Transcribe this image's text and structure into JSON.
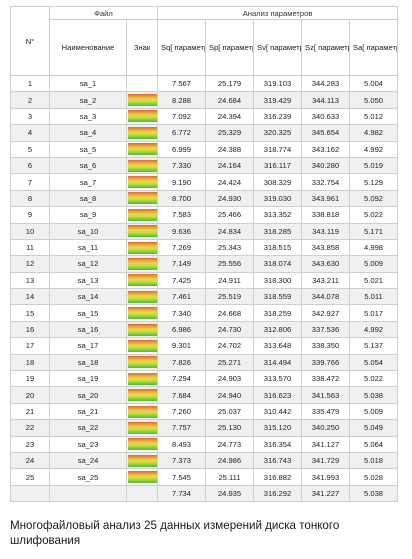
{
  "header": {
    "no": "N°",
    "file_group": "Файл",
    "analysis_group": "Анализ параметров",
    "name": "Наименование",
    "mark": "Знак",
    "columns": [
      "Sq[ параметр высоты] [I...",
      "Sp[ параметр высоты] [I...",
      "Sv[ параметр высоты] [IS...",
      "Sz[ параметр высоты] [IS...",
      "Sa[ параметр высоты] [I..."
    ]
  },
  "rows": [
    {
      "no": "1",
      "name": "sa_1",
      "mark": "",
      "values": [
        "7.567",
        "25.179",
        "319.103",
        "344.283",
        "5.004"
      ]
    },
    {
      "no": "2",
      "name": "sa_2",
      "mark": "gradient",
      "values": [
        "8.288",
        "24.684",
        "319.429",
        "344.113",
        "5.050"
      ]
    },
    {
      "no": "3",
      "name": "sa_3",
      "mark": "gradient",
      "values": [
        "7.092",
        "24.394",
        "316.239",
        "340.633",
        "5.012"
      ]
    },
    {
      "no": "4",
      "name": "sa_4",
      "mark": "gradient",
      "values": [
        "6.772",
        "25.329",
        "320.325",
        "345.654",
        "4.982"
      ]
    },
    {
      "no": "5",
      "name": "sa_5",
      "mark": "gradient",
      "values": [
        "6.999",
        "24.388",
        "318.774",
        "343.162",
        "4.992"
      ]
    },
    {
      "no": "6",
      "name": "sa_6",
      "mark": "gradient",
      "values": [
        "7.330",
        "24.164",
        "316.117",
        "340.280",
        "5.019"
      ]
    },
    {
      "no": "7",
      "name": "sa_7",
      "mark": "gradient",
      "values": [
        "9.190",
        "24.424",
        "308.329",
        "332.754",
        "5.129"
      ]
    },
    {
      "no": "8",
      "name": "sa_8",
      "mark": "gradient",
      "values": [
        "8.700",
        "24.930",
        "319.030",
        "343.961",
        "5.092"
      ]
    },
    {
      "no": "9",
      "name": "sa_9",
      "mark": "gradient",
      "values": [
        "7.583",
        "25.466",
        "313.352",
        "338.818",
        "5.022"
      ]
    },
    {
      "no": "10",
      "name": "sa_10",
      "mark": "gradient",
      "values": [
        "9.636",
        "24.834",
        "318.285",
        "343.119",
        "5.171"
      ]
    },
    {
      "no": "11",
      "name": "sa_11",
      "mark": "gradient",
      "values": [
        "7.269",
        "25.343",
        "318.515",
        "343.858",
        "4.998"
      ]
    },
    {
      "no": "12",
      "name": "sa_12",
      "mark": "gradient",
      "values": [
        "7.149",
        "25.556",
        "318.074",
        "343.630",
        "5.009"
      ]
    },
    {
      "no": "13",
      "name": "sa_13",
      "mark": "gradient",
      "values": [
        "7.425",
        "24.911",
        "318.300",
        "343.211",
        "5.021"
      ]
    },
    {
      "no": "14",
      "name": "sa_14",
      "mark": "gradient",
      "values": [
        "7.461",
        "25.519",
        "318.559",
        "344.078",
        "5.011"
      ]
    },
    {
      "no": "15",
      "name": "sa_15",
      "mark": "gradient",
      "values": [
        "7.340",
        "24.668",
        "318.259",
        "342.927",
        "5.017"
      ]
    },
    {
      "no": "16",
      "name": "sa_16",
      "mark": "gradient",
      "values": [
        "6.986",
        "24.730",
        "312.806",
        "337.536",
        "4.992"
      ]
    },
    {
      "no": "17",
      "name": "sa_17",
      "mark": "gradient",
      "values": [
        "9.301",
        "24.702",
        "313.648",
        "338.350",
        "5.137"
      ]
    },
    {
      "no": "18",
      "name": "sa_18",
      "mark": "gradient",
      "values": [
        "7.826",
        "25.271",
        "314.494",
        "339.766",
        "5.054"
      ]
    },
    {
      "no": "19",
      "name": "sa_19",
      "mark": "gradient",
      "values": [
        "7.294",
        "24.903",
        "313.570",
        "338.472",
        "5.022"
      ]
    },
    {
      "no": "20",
      "name": "sa_20",
      "mark": "gradient",
      "values": [
        "7.684",
        "24.940",
        "316.623",
        "341.563",
        "5.038"
      ]
    },
    {
      "no": "21",
      "name": "sa_21",
      "mark": "gradient",
      "values": [
        "7.260",
        "25.037",
        "310.442",
        "335.479",
        "5.009"
      ]
    },
    {
      "no": "22",
      "name": "sa_22",
      "mark": "gradient",
      "values": [
        "7.757",
        "25.130",
        "315.120",
        "340.250",
        "5.049"
      ]
    },
    {
      "no": "23",
      "name": "sa_23",
      "mark": "gradient",
      "values": [
        "8.493",
        "24.773",
        "316.354",
        "341.127",
        "5.064"
      ]
    },
    {
      "no": "24",
      "name": "sa_24",
      "mark": "gradient",
      "values": [
        "7.373",
        "24.986",
        "316.743",
        "341.729",
        "5.018"
      ]
    },
    {
      "no": "25",
      "name": "sa_25",
      "mark": "gradient",
      "values": [
        "7.545",
        "25.111",
        "316.882",
        "341.993",
        "5.028"
      ]
    }
  ],
  "summary": {
    "no": "",
    "name": "",
    "mark": "",
    "values": [
      "7.734",
      "24.935",
      "316.292",
      "341.227",
      "5.038"
    ]
  },
  "caption": "Многофайловый анализ 25 данных измерений диска тонкого шлифования",
  "colors": {
    "grid": "#cfcfcf",
    "stripe": "#f0f0f0",
    "mark_gradient": [
      "#d96a3b",
      "#e9a43d",
      "#ebd943",
      "#bede3f",
      "#7ec83e",
      "#59b53a"
    ]
  }
}
